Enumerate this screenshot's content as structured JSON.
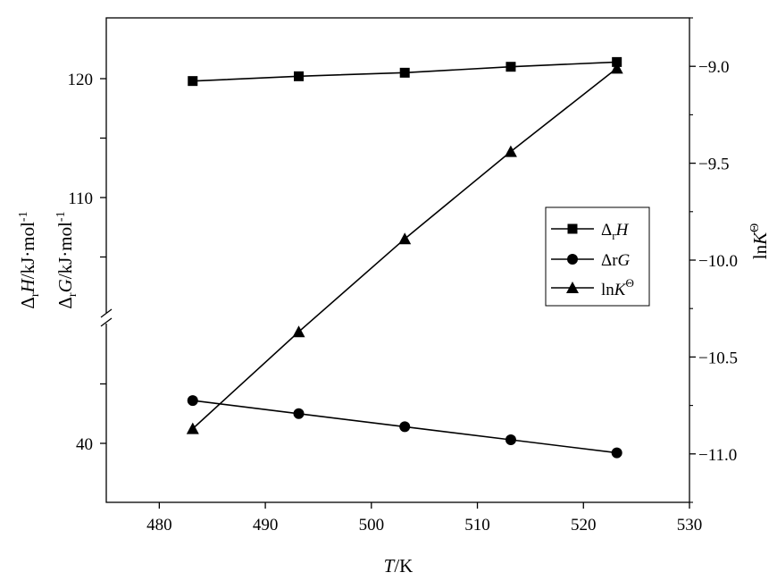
{
  "chart_data": {
    "type": "line",
    "x_label": {
      "italic": "T",
      "rest": "/K"
    },
    "left_label_1": {
      "pre": "Δ",
      "sub": "r",
      "ital": "H",
      "rest": "/kJ·mol",
      "sup": "-1"
    },
    "left_label_2": {
      "pre": "Δ",
      "sub": "r",
      "ital": "G",
      "rest": "/kJ·mol",
      "sup": "-1"
    },
    "right_label": {
      "pre": "ln",
      "ital": "K",
      "sup": "Θ"
    },
    "x": [
      483.15,
      493.15,
      503.15,
      513.15,
      523.15
    ],
    "xlim": [
      475,
      530
    ],
    "x_ticks": [
      480,
      490,
      500,
      510,
      520,
      530
    ],
    "left_axis": {
      "broken": true,
      "upper_range": [
        100,
        125
      ],
      "lower_range": [
        35,
        50
      ],
      "ticks_labeled": [
        40,
        110,
        120
      ],
      "ticks_minor": [
        45,
        105,
        115
      ]
    },
    "right_axis": {
      "ylim": [
        -11.25,
        -8.75
      ],
      "ticks": [
        -9.0,
        -9.5,
        -10.0,
        -10.5,
        -11.0
      ],
      "tick_labels": [
        "−9.0",
        "−9.5",
        "−10.0",
        "−10.5",
        "−11.0"
      ]
    },
    "legend_position": "center-right",
    "series": [
      {
        "id": "dH",
        "legend": {
          "pre": "Δ",
          "sub": "r",
          "ital": "H"
        },
        "marker": "square",
        "axis": "left-upper",
        "values": [
          119.8,
          120.2,
          120.5,
          121.0,
          121.4
        ]
      },
      {
        "id": "dG",
        "legend": {
          "pre": "Δr",
          "ital": "G"
        },
        "marker": "circle",
        "axis": "left-lower",
        "values": [
          43.6,
          42.5,
          41.4,
          40.3,
          39.2
        ]
      },
      {
        "id": "lnK",
        "legend": {
          "pre": "ln",
          "ital": "K",
          "sup": "Θ"
        },
        "marker": "triangle",
        "axis": "right",
        "values": [
          -10.87,
          -10.37,
          -9.89,
          -9.44,
          -9.01
        ]
      }
    ]
  }
}
